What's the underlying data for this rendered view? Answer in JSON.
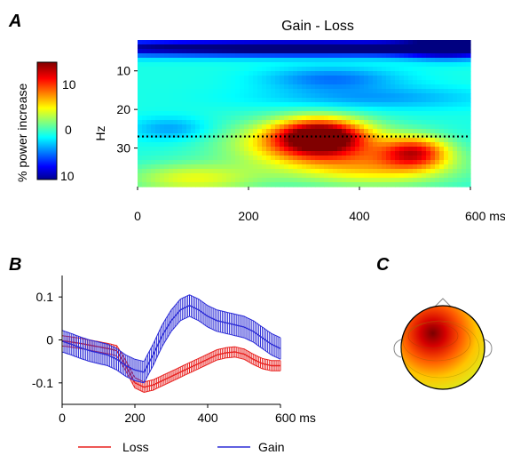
{
  "panels": {
    "a": {
      "letter": "A"
    },
    "b": {
      "letter": "B"
    },
    "c": {
      "letter": "C"
    }
  },
  "chart_data": [
    {
      "type": "heatmap",
      "title": "Gain - Loss",
      "xlabel": "",
      "ylabel": "Hz",
      "xlim": [
        0,
        600
      ],
      "ylim": [
        2,
        40
      ],
      "x_ticks": [
        0,
        200,
        400,
        600
      ],
      "x_tick_labels": [
        "0",
        "200",
        "400",
        "600 ms"
      ],
      "y_ticks": [
        10,
        20,
        30
      ],
      "y_tick_labels": [
        "10",
        "20",
        "30"
      ],
      "colorbar": {
        "label": "% power increase",
        "range": [
          -10,
          15
        ],
        "ticks": [
          10,
          0,
          -10
        ],
        "tick_labels": [
          "10",
          "0",
          "10"
        ],
        "colormap": "jet"
      },
      "reference_line": {
        "frequency_hz": 27,
        "style": "dotted"
      },
      "blobs": [
        {
          "x": 330,
          "y": 27,
          "value": 14,
          "sx": 80,
          "sy": 4.5
        },
        {
          "x": 300,
          "y": 29,
          "value": 7,
          "sx": 140,
          "sy": 6
        },
        {
          "x": 500,
          "y": 31,
          "value": 10,
          "sx": 60,
          "sy": 4
        },
        {
          "x": 430,
          "y": 35,
          "value": 6,
          "sx": 150,
          "sy": 5
        },
        {
          "x": 100,
          "y": 38,
          "value": 5,
          "sx": 120,
          "sy": 4
        },
        {
          "x": 300,
          "y": 4,
          "value": -12,
          "sx": 600,
          "sy": 2.2
        },
        {
          "x": 560,
          "y": 4,
          "value": -6,
          "sx": 80,
          "sy": 3
        },
        {
          "x": 350,
          "y": 12,
          "value": -4,
          "sx": 120,
          "sy": 3
        },
        {
          "x": 60,
          "y": 25,
          "value": -3,
          "sx": 70,
          "sy": 3
        },
        {
          "x": 420,
          "y": 17,
          "value": -3,
          "sx": 200,
          "sy": 3
        }
      ]
    },
    {
      "type": "line",
      "xlabel": "",
      "ylabel": "",
      "xlim": [
        0,
        600
      ],
      "ylim": [
        -0.15,
        0.15
      ],
      "x_ticks": [
        0,
        200,
        400,
        600
      ],
      "x_tick_labels": [
        "0",
        "200",
        "400",
        "600 ms"
      ],
      "y_ticks": [
        0.1,
        0,
        -0.1
      ],
      "y_tick_labels": [
        "0.1",
        "0",
        "-0.1"
      ],
      "legend_position": "bottom",
      "x": [
        0,
        25,
        50,
        75,
        100,
        125,
        150,
        175,
        200,
        225,
        250,
        275,
        300,
        325,
        350,
        375,
        400,
        425,
        450,
        475,
        500,
        525,
        550,
        575,
        600
      ],
      "series": [
        {
          "name": "Loss",
          "color": "#e8211f",
          "values": [
            -0.002,
            -0.005,
            -0.008,
            -0.012,
            -0.016,
            -0.02,
            -0.025,
            -0.06,
            -0.1,
            -0.11,
            -0.105,
            -0.095,
            -0.085,
            -0.075,
            -0.065,
            -0.055,
            -0.045,
            -0.035,
            -0.03,
            -0.028,
            -0.033,
            -0.045,
            -0.055,
            -0.06,
            -0.06
          ],
          "error": 0.012
        },
        {
          "name": "Gain",
          "color": "#2b2bd6",
          "values": [
            -0.003,
            -0.01,
            -0.018,
            -0.025,
            -0.03,
            -0.035,
            -0.045,
            -0.06,
            -0.07,
            -0.075,
            -0.035,
            0.01,
            0.045,
            0.07,
            0.08,
            0.07,
            0.055,
            0.045,
            0.04,
            0.035,
            0.03,
            0.02,
            0.005,
            -0.01,
            -0.02
          ],
          "error": 0.025
        }
      ]
    }
  ]
}
